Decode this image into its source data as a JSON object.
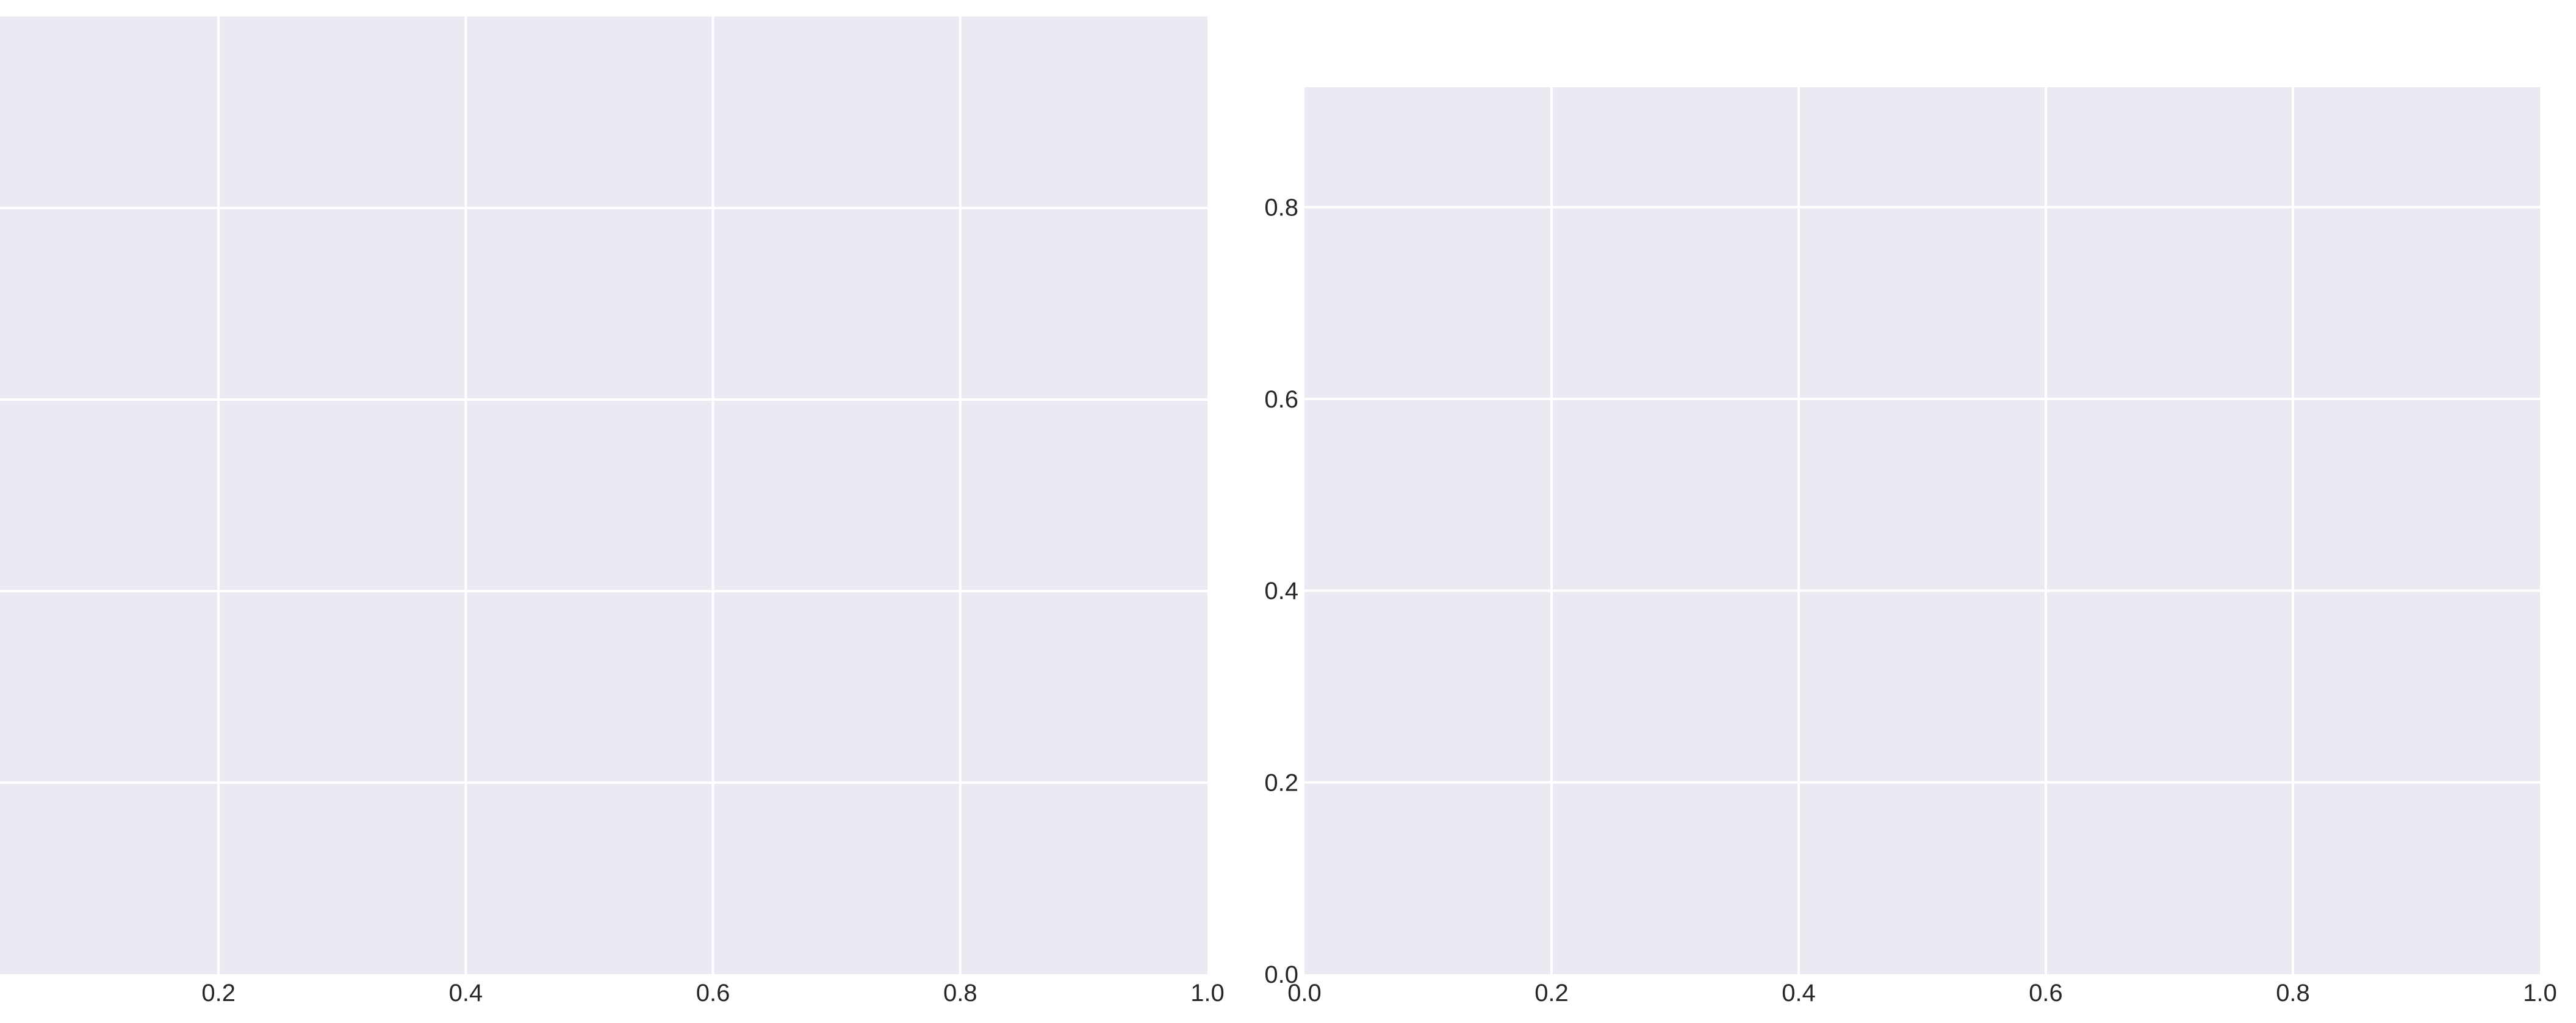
{
  "chart_data": [
    {
      "type": "line",
      "title": "",
      "xlabel": "",
      "ylabel": "",
      "series": [],
      "xlim": [
        0,
        1
      ],
      "ylim": [
        0,
        1
      ],
      "x_ticks": [
        0.2,
        0.4,
        0.6,
        0.8,
        1.0
      ],
      "x_tick_labels": [
        "0.2",
        "0.4",
        "0.6",
        "0.8",
        "1.0"
      ],
      "y_ticks": [
        0.2,
        0.4,
        0.6,
        0.8
      ],
      "y_tick_labels": [],
      "grid": true,
      "background": "#eaeaf2",
      "grid_color": "#ffffff"
    },
    {
      "type": "line",
      "title": "",
      "xlabel": "",
      "ylabel": "",
      "series": [],
      "xlim": [
        0,
        1
      ],
      "ylim": [
        0,
        0.925
      ],
      "x_ticks": [
        0.0,
        0.2,
        0.4,
        0.6,
        0.8,
        1.0
      ],
      "x_tick_labels": [
        "0.0",
        "0.2",
        "0.4",
        "0.6",
        "0.8",
        "1.0"
      ],
      "y_ticks": [
        0.0,
        0.2,
        0.4,
        0.6,
        0.8
      ],
      "y_tick_labels": [
        "0.0",
        "0.2",
        "0.4",
        "0.6",
        "0.8"
      ],
      "grid": true,
      "background": "#eaeaf2",
      "grid_color": "#ffffff"
    }
  ]
}
